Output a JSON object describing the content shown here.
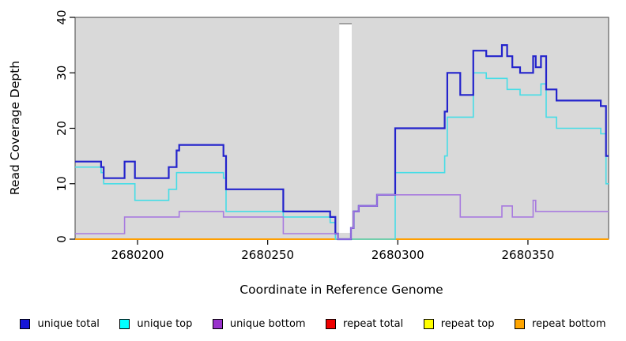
{
  "axes": {
    "xlabel": "Coordinate in Reference Genome",
    "ylabel": "Read Coverage Depth",
    "x_ticks": [
      2680200,
      2680250,
      2680300,
      2680350
    ],
    "y_ticks": [
      0,
      10,
      20,
      30,
      40
    ]
  },
  "chart_data": {
    "type": "line",
    "step": true,
    "title": "",
    "xlabel": "Coordinate in Reference Genome",
    "ylabel": "Read Coverage Depth",
    "xlim": [
      2680176,
      2680381
    ],
    "ylim": [
      0,
      40
    ],
    "grid": false,
    "plot_bg_color": "#d9d9d9",
    "gap_region": {
      "x_start": 2680277.5,
      "x_end": 2680282.3,
      "color": "#ffffff"
    },
    "legend_position": "bottom",
    "series": [
      {
        "name": "repeat total",
        "color": "#cc0000",
        "width": 1.5,
        "points": [
          [
            2680176,
            0
          ],
          [
            2680381,
            0
          ]
        ]
      },
      {
        "name": "repeat top",
        "color": "#eded00",
        "width": 1.5,
        "points": [
          [
            2680176,
            0
          ],
          [
            2680381,
            0
          ]
        ]
      },
      {
        "name": "repeat bottom",
        "color": "#ff9f00",
        "width": 2,
        "points": [
          [
            2680176,
            0
          ],
          [
            2680381,
            0
          ]
        ]
      },
      {
        "name": "unique top",
        "color": "#45dde6",
        "width": 1.6,
        "points": [
          [
            2680176,
            13
          ],
          [
            2680186,
            12
          ],
          [
            2680187,
            10
          ],
          [
            2680199,
            7
          ],
          [
            2680212,
            9
          ],
          [
            2680215,
            12
          ],
          [
            2680233,
            11
          ],
          [
            2680234,
            5
          ],
          [
            2680256,
            4
          ],
          [
            2680274,
            3
          ],
          [
            2680276,
            0
          ],
          [
            2680299,
            12
          ],
          [
            2680318,
            15
          ],
          [
            2680319,
            22
          ],
          [
            2680329,
            30
          ],
          [
            2680334,
            29
          ],
          [
            2680342,
            27
          ],
          [
            2680347,
            26
          ],
          [
            2680355,
            28
          ],
          [
            2680357,
            22
          ],
          [
            2680361,
            20
          ],
          [
            2680378,
            19
          ],
          [
            2680380,
            10
          ],
          [
            2680381,
            10
          ]
        ]
      },
      {
        "name": "unique total",
        "color": "#2323cc",
        "width": 2.2,
        "points": [
          [
            2680176,
            14
          ],
          [
            2680186,
            13
          ],
          [
            2680187,
            11
          ],
          [
            2680195,
            14
          ],
          [
            2680199,
            11
          ],
          [
            2680212,
            13
          ],
          [
            2680215,
            16
          ],
          [
            2680216,
            17
          ],
          [
            2680233,
            15
          ],
          [
            2680234,
            9
          ],
          [
            2680256,
            5
          ],
          [
            2680274,
            4
          ],
          [
            2680276,
            1
          ],
          [
            2680277,
            0
          ],
          [
            2680282,
            2
          ],
          [
            2680283,
            5
          ],
          [
            2680285,
            6
          ],
          [
            2680292,
            8
          ],
          [
            2680299,
            20
          ],
          [
            2680318,
            23
          ],
          [
            2680319,
            30
          ],
          [
            2680324,
            26
          ],
          [
            2680329,
            34
          ],
          [
            2680334,
            33
          ],
          [
            2680340,
            35
          ],
          [
            2680342,
            33
          ],
          [
            2680344,
            31
          ],
          [
            2680347,
            30
          ],
          [
            2680352,
            33
          ],
          [
            2680353,
            31
          ],
          [
            2680355,
            33
          ],
          [
            2680357,
            27
          ],
          [
            2680361,
            25
          ],
          [
            2680378,
            24
          ],
          [
            2680380,
            15
          ],
          [
            2680381,
            15
          ]
        ]
      },
      {
        "name": "unique bottom",
        "color": "#a87bdf",
        "width": 1.6,
        "points": [
          [
            2680176,
            1
          ],
          [
            2680195,
            4
          ],
          [
            2680216,
            5
          ],
          [
            2680233,
            4
          ],
          [
            2680256,
            1
          ],
          [
            2680277,
            0
          ],
          [
            2680282,
            2
          ],
          [
            2680283,
            5
          ],
          [
            2680285,
            6
          ],
          [
            2680292,
            8
          ],
          [
            2680324,
            4
          ],
          [
            2680340,
            6
          ],
          [
            2680344,
            4
          ],
          [
            2680352,
            7
          ],
          [
            2680353,
            5
          ],
          [
            2680381,
            5
          ]
        ]
      }
    ]
  },
  "legend": {
    "items": [
      {
        "label": "unique total",
        "color": "#1515d6"
      },
      {
        "label": "unique top",
        "color": "#00ffff"
      },
      {
        "label": "unique bottom",
        "color": "#9933cc"
      },
      {
        "label": "repeat total",
        "color": "#ee0000"
      },
      {
        "label": "repeat top",
        "color": "#ffff00"
      },
      {
        "label": "repeat bottom",
        "color": "#ffa500"
      }
    ]
  }
}
